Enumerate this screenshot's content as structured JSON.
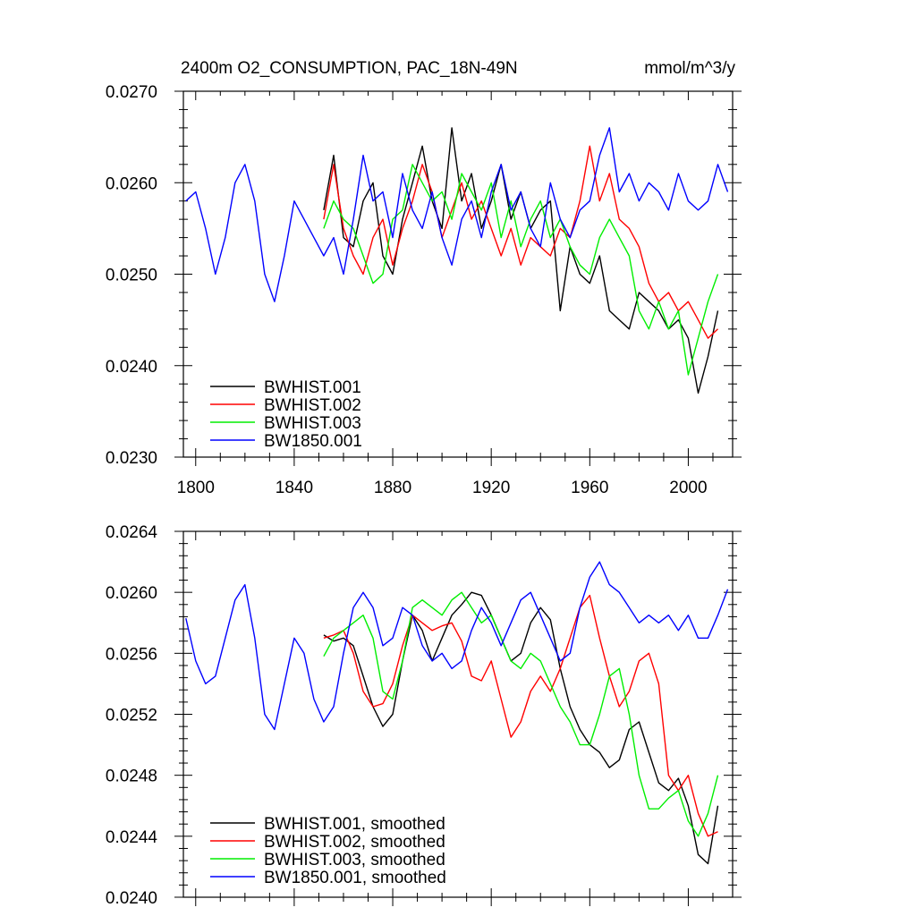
{
  "chart_data": [
    {
      "type": "line",
      "title": "2400m O2_CONSUMPTION, PAC_18N-49N",
      "units": "mmol/m^3/y",
      "xlim": [
        1795,
        2018
      ],
      "ylim": [
        0.023,
        0.027
      ],
      "x_ticks": [
        1800,
        1840,
        1880,
        1920,
        1960,
        2000
      ],
      "x_tick_labels": [
        "1800",
        "1840",
        "1880",
        "1920",
        "1960",
        "2000"
      ],
      "y_ticks": [
        0.023,
        0.024,
        0.025,
        0.026,
        0.027
      ],
      "y_tick_labels": [
        "0.0230",
        "0.0240",
        "0.0250",
        "0.0260",
        "0.0270"
      ],
      "legend": "bottom-left",
      "series": [
        {
          "name": "BWHIST.001",
          "color": "#000000",
          "x": [
            1852,
            1856,
            1860,
            1864,
            1868,
            1872,
            1876,
            1880,
            1884,
            1888,
            1892,
            1896,
            1900,
            1904,
            1908,
            1912,
            1916,
            1920,
            1924,
            1928,
            1932,
            1936,
            1940,
            1944,
            1948,
            1952,
            1956,
            1960,
            1964,
            1968,
            1972,
            1976,
            1980,
            1984,
            1988,
            1992,
            1996,
            2000,
            2004,
            2008,
            2012
          ],
          "values": [
            0.0257,
            0.0263,
            0.0254,
            0.0253,
            0.0258,
            0.026,
            0.0252,
            0.025,
            0.0256,
            0.026,
            0.0264,
            0.0258,
            0.0255,
            0.0266,
            0.0258,
            0.0261,
            0.0255,
            0.0258,
            0.0262,
            0.0256,
            0.0259,
            0.0255,
            0.0257,
            0.0258,
            0.0246,
            0.0253,
            0.025,
            0.0249,
            0.0252,
            0.0246,
            0.0245,
            0.0244,
            0.0248,
            0.0247,
            0.0246,
            0.0244,
            0.0245,
            0.0243,
            0.0237,
            0.0241,
            0.0246
          ]
        },
        {
          "name": "BWHIST.002",
          "color": "#ff0000",
          "x": [
            1852,
            1856,
            1860,
            1864,
            1868,
            1872,
            1876,
            1880,
            1884,
            1888,
            1892,
            1896,
            1900,
            1904,
            1908,
            1912,
            1916,
            1920,
            1924,
            1928,
            1932,
            1936,
            1940,
            1944,
            1948,
            1952,
            1956,
            1960,
            1964,
            1968,
            1972,
            1976,
            1980,
            1984,
            1988,
            1992,
            1996,
            2000,
            2004,
            2008,
            2012
          ],
          "values": [
            0.0256,
            0.0262,
            0.0255,
            0.0252,
            0.025,
            0.0254,
            0.0256,
            0.0251,
            0.0255,
            0.0258,
            0.0262,
            0.0259,
            0.0254,
            0.0257,
            0.026,
            0.0256,
            0.0258,
            0.0255,
            0.0252,
            0.0255,
            0.0251,
            0.0254,
            0.0253,
            0.0252,
            0.0255,
            0.0254,
            0.0258,
            0.0264,
            0.0258,
            0.0261,
            0.0256,
            0.0255,
            0.0253,
            0.0249,
            0.0247,
            0.0248,
            0.0246,
            0.0247,
            0.0245,
            0.0243,
            0.0244
          ]
        },
        {
          "name": "BWHIST.003",
          "color": "#00ee00",
          "x": [
            1852,
            1856,
            1860,
            1864,
            1868,
            1872,
            1876,
            1880,
            1884,
            1888,
            1892,
            1896,
            1900,
            1904,
            1908,
            1912,
            1916,
            1920,
            1924,
            1928,
            1932,
            1936,
            1940,
            1944,
            1948,
            1952,
            1956,
            1960,
            1964,
            1968,
            1972,
            1976,
            1980,
            1984,
            1988,
            1992,
            1996,
            2000,
            2004,
            2008,
            2012
          ],
          "values": [
            0.0255,
            0.0258,
            0.0256,
            0.0255,
            0.0252,
            0.0249,
            0.025,
            0.0256,
            0.0257,
            0.0262,
            0.026,
            0.0258,
            0.0259,
            0.0256,
            0.0261,
            0.0259,
            0.0257,
            0.026,
            0.0254,
            0.0258,
            0.0253,
            0.0256,
            0.0258,
            0.0254,
            0.0256,
            0.0253,
            0.0251,
            0.025,
            0.0254,
            0.0256,
            0.0254,
            0.0252,
            0.0246,
            0.0244,
            0.0247,
            0.0244,
            0.0246,
            0.0239,
            0.0243,
            0.0247,
            0.025
          ]
        },
        {
          "name": "BW1850.001",
          "color": "#0000ff",
          "x": [
            1796,
            1800,
            1804,
            1808,
            1812,
            1816,
            1820,
            1824,
            1828,
            1832,
            1836,
            1840,
            1844,
            1848,
            1852,
            1856,
            1860,
            1864,
            1868,
            1872,
            1876,
            1880,
            1884,
            1888,
            1892,
            1896,
            1900,
            1904,
            1908,
            1912,
            1916,
            1920,
            1924,
            1928,
            1932,
            1936,
            1940,
            1944,
            1948,
            1952,
            1956,
            1960,
            1964,
            1968,
            1972,
            1976,
            1980,
            1984,
            1988,
            1992,
            1996,
            2000,
            2004,
            2008,
            2012,
            2016
          ],
          "values": [
            0.0258,
            0.0259,
            0.0255,
            0.025,
            0.0254,
            0.026,
            0.0262,
            0.0258,
            0.025,
            0.0247,
            0.0252,
            0.0258,
            0.0256,
            0.0254,
            0.0252,
            0.0254,
            0.025,
            0.0256,
            0.0263,
            0.0258,
            0.0259,
            0.0254,
            0.0261,
            0.0257,
            0.0255,
            0.0259,
            0.0254,
            0.0251,
            0.0256,
            0.0258,
            0.0254,
            0.0259,
            0.0262,
            0.0257,
            0.0259,
            0.0255,
            0.0253,
            0.026,
            0.0256,
            0.0254,
            0.0257,
            0.0258,
            0.0263,
            0.0266,
            0.0259,
            0.0261,
            0.0258,
            0.026,
            0.0259,
            0.0257,
            0.0261,
            0.0258,
            0.0257,
            0.0258,
            0.0262,
            0.0259
          ]
        }
      ]
    },
    {
      "type": "line",
      "title": "",
      "xlim": [
        1795,
        2018
      ],
      "ylim": [
        0.024,
        0.0264
      ],
      "x_ticks": [
        1800,
        1840,
        1880,
        1920,
        1960,
        2000
      ],
      "y_ticks": [
        0.024,
        0.0244,
        0.0248,
        0.0252,
        0.0256,
        0.026,
        0.0264
      ],
      "y_tick_labels": [
        "0.0240",
        "0.0244",
        "0.0248",
        "0.0252",
        "0.0256",
        "0.0260",
        "0.0264"
      ],
      "legend": "bottom-left",
      "series": [
        {
          "name": "BWHIST.001, smoothed",
          "color": "#000000",
          "x": [
            1852,
            1856,
            1860,
            1864,
            1868,
            1872,
            1876,
            1880,
            1884,
            1888,
            1892,
            1896,
            1900,
            1904,
            1908,
            1912,
            1916,
            1920,
            1924,
            1928,
            1932,
            1936,
            1940,
            1944,
            1948,
            1952,
            1956,
            1960,
            1964,
            1968,
            1972,
            1976,
            1980,
            1984,
            1988,
            1992,
            1996,
            2000,
            2004,
            2008,
            2012
          ],
          "values": [
            0.02572,
            0.02568,
            0.0257,
            0.02565,
            0.02545,
            0.02525,
            0.02512,
            0.0252,
            0.02555,
            0.02585,
            0.02575,
            0.02555,
            0.0257,
            0.02585,
            0.02592,
            0.026,
            0.02598,
            0.02585,
            0.0257,
            0.02555,
            0.0256,
            0.0258,
            0.0259,
            0.02582,
            0.0255,
            0.02525,
            0.0251,
            0.025,
            0.02495,
            0.02485,
            0.0249,
            0.0251,
            0.02515,
            0.02495,
            0.02475,
            0.0247,
            0.02478,
            0.0246,
            0.02428,
            0.02422,
            0.0246
          ]
        },
        {
          "name": "BWHIST.002, smoothed",
          "color": "#ff0000",
          "x": [
            1852,
            1856,
            1860,
            1864,
            1868,
            1872,
            1876,
            1880,
            1884,
            1888,
            1892,
            1896,
            1900,
            1904,
            1908,
            1912,
            1916,
            1920,
            1924,
            1928,
            1932,
            1936,
            1940,
            1944,
            1948,
            1952,
            1956,
            1960,
            1964,
            1968,
            1972,
            1976,
            1980,
            1984,
            1988,
            1992,
            1996,
            2000,
            2004,
            2008,
            2012
          ],
          "values": [
            0.0257,
            0.02572,
            0.02575,
            0.0256,
            0.02535,
            0.02525,
            0.02527,
            0.0254,
            0.02565,
            0.02585,
            0.0258,
            0.02575,
            0.02578,
            0.0258,
            0.02568,
            0.02545,
            0.02542,
            0.02555,
            0.0253,
            0.02505,
            0.02515,
            0.02535,
            0.02545,
            0.02535,
            0.0255,
            0.0257,
            0.0259,
            0.02598,
            0.0257,
            0.02545,
            0.02525,
            0.02535,
            0.02555,
            0.0256,
            0.0254,
            0.0248,
            0.0247,
            0.0248,
            0.02455,
            0.0244,
            0.02443
          ]
        },
        {
          "name": "BWHIST.003, smoothed",
          "color": "#00ee00",
          "x": [
            1852,
            1856,
            1860,
            1864,
            1868,
            1872,
            1876,
            1880,
            1884,
            1888,
            1892,
            1896,
            1900,
            1904,
            1908,
            1912,
            1916,
            1920,
            1924,
            1928,
            1932,
            1936,
            1940,
            1944,
            1948,
            1952,
            1956,
            1960,
            1964,
            1968,
            1972,
            1976,
            1980,
            1984,
            1988,
            1992,
            1996,
            2000,
            2004,
            2008,
            2012
          ],
          "values": [
            0.02558,
            0.0257,
            0.02575,
            0.0258,
            0.02585,
            0.0257,
            0.02535,
            0.0253,
            0.02555,
            0.0259,
            0.02595,
            0.0259,
            0.02585,
            0.02595,
            0.026,
            0.0259,
            0.0258,
            0.02585,
            0.0257,
            0.02555,
            0.0255,
            0.0256,
            0.02555,
            0.0254,
            0.02525,
            0.02515,
            0.025,
            0.025,
            0.0252,
            0.02545,
            0.0255,
            0.0252,
            0.0248,
            0.02458,
            0.02458,
            0.02465,
            0.0247,
            0.0245,
            0.0244,
            0.02455,
            0.0248
          ]
        },
        {
          "name": "BW1850.001, smoothed",
          "color": "#0000ff",
          "x": [
            1796,
            1800,
            1804,
            1808,
            1812,
            1816,
            1820,
            1824,
            1828,
            1832,
            1836,
            1840,
            1844,
            1848,
            1852,
            1856,
            1860,
            1864,
            1868,
            1872,
            1876,
            1880,
            1884,
            1888,
            1892,
            1896,
            1900,
            1904,
            1908,
            1912,
            1916,
            1920,
            1924,
            1928,
            1932,
            1936,
            1940,
            1944,
            1948,
            1952,
            1956,
            1960,
            1964,
            1968,
            1972,
            1976,
            1980,
            1984,
            1988,
            1992,
            1996,
            2000,
            2004,
            2008,
            2012,
            2016
          ],
          "values": [
            0.02583,
            0.02555,
            0.0254,
            0.02545,
            0.0257,
            0.02595,
            0.02605,
            0.0257,
            0.0252,
            0.0251,
            0.0254,
            0.0257,
            0.0256,
            0.0253,
            0.02515,
            0.02525,
            0.0256,
            0.0259,
            0.026,
            0.0259,
            0.02565,
            0.0257,
            0.0259,
            0.02585,
            0.02565,
            0.02555,
            0.0256,
            0.0255,
            0.02555,
            0.02575,
            0.0259,
            0.0258,
            0.02565,
            0.0258,
            0.02595,
            0.026,
            0.02585,
            0.0257,
            0.02555,
            0.0256,
            0.0259,
            0.0261,
            0.0262,
            0.02605,
            0.026,
            0.0259,
            0.0258,
            0.02585,
            0.0258,
            0.02585,
            0.02575,
            0.02585,
            0.0257,
            0.0257,
            0.02585,
            0.02602
          ]
        }
      ]
    }
  ]
}
